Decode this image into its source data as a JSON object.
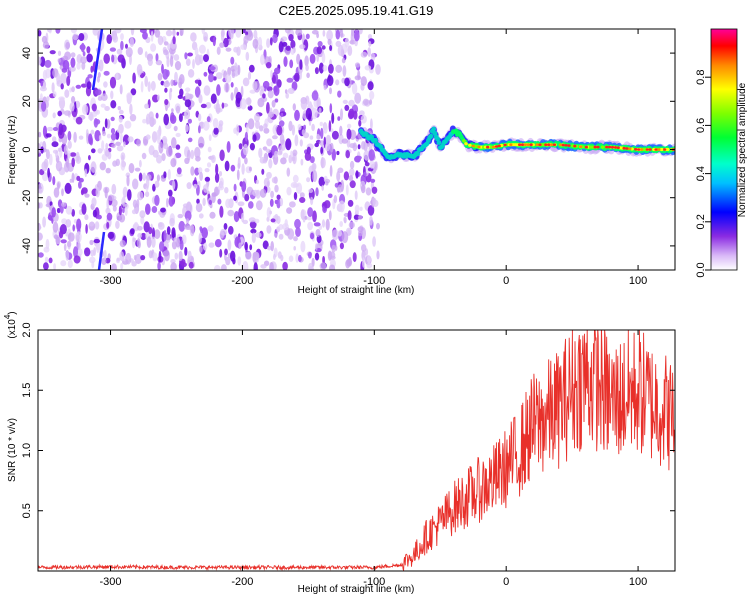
{
  "title": "C2E5.2025.095.19.41.G19",
  "chart_data": [
    {
      "type": "heatmap",
      "xlabel": "Height of straight line (km)",
      "ylabel": "Frequency (Hz)",
      "xlim": [
        -355,
        128
      ],
      "ylim": [
        -50,
        50
      ],
      "x_ticks": [
        -300,
        -200,
        -100,
        0,
        100
      ],
      "y_ticks": [
        -40,
        -20,
        0,
        20,
        40
      ],
      "colorbar": {
        "label": "Normalized spectral amplitude",
        "range": [
          0,
          1
        ],
        "ticks": [
          "0.0",
          "0.2",
          "0.4",
          "0.6",
          "0.8"
        ],
        "colors": [
          "#ffffff",
          "#d7b6f5",
          "#8a2be2",
          "#0000ff",
          "#00ffff",
          "#00ff66",
          "#7fff00",
          "#ffff00",
          "#ff9900",
          "#ff0000",
          "#ff0099"
        ]
      },
      "noise_region_x": [
        -355,
        -97
      ],
      "signal_trace": {
        "x": [
          -110,
          -100,
          -90,
          -80,
          -70,
          -60,
          -55,
          -50,
          -45,
          -40,
          -35,
          -30,
          -20,
          -10,
          0,
          20,
          40,
          60,
          80,
          100,
          128
        ],
        "frequency": [
          7,
          4,
          -3,
          -2,
          -3,
          3,
          8,
          1,
          4,
          8,
          6,
          2,
          1,
          1,
          2,
          2,
          2,
          1,
          1,
          0,
          0
        ]
      }
    },
    {
      "type": "line",
      "xlabel": "Height of straight line (km)",
      "ylabel": "SNR (10 * v/v)",
      "y_scale_label": "(x10",
      "y_scale_exp": "4",
      "xlim": [
        -355,
        128
      ],
      "ylim": [
        0,
        2.0
      ],
      "x_ticks": [
        -300,
        -200,
        -100,
        0,
        100
      ],
      "y_ticks": [
        "0.5",
        "1.0",
        "1.5",
        "2.0"
      ],
      "color": "#e8302a",
      "series": [
        {
          "name": "SNR",
          "x": [
            -355,
            -300,
            -250,
            -200,
            -150,
            -100,
            -80,
            -70,
            -60,
            -50,
            -40,
            -30,
            -20,
            -10,
            0,
            10,
            20,
            30,
            40,
            50,
            60,
            70,
            80,
            90,
            100,
            110,
            120,
            128
          ],
          "values": [
            0.03,
            0.035,
            0.03,
            0.03,
            0.03,
            0.03,
            0.05,
            0.12,
            0.28,
            0.38,
            0.5,
            0.58,
            0.65,
            0.72,
            0.82,
            0.95,
            1.15,
            1.22,
            1.3,
            1.45,
            1.55,
            1.5,
            1.35,
            1.4,
            1.45,
            1.35,
            1.3,
            1.2
          ]
        }
      ]
    }
  ]
}
